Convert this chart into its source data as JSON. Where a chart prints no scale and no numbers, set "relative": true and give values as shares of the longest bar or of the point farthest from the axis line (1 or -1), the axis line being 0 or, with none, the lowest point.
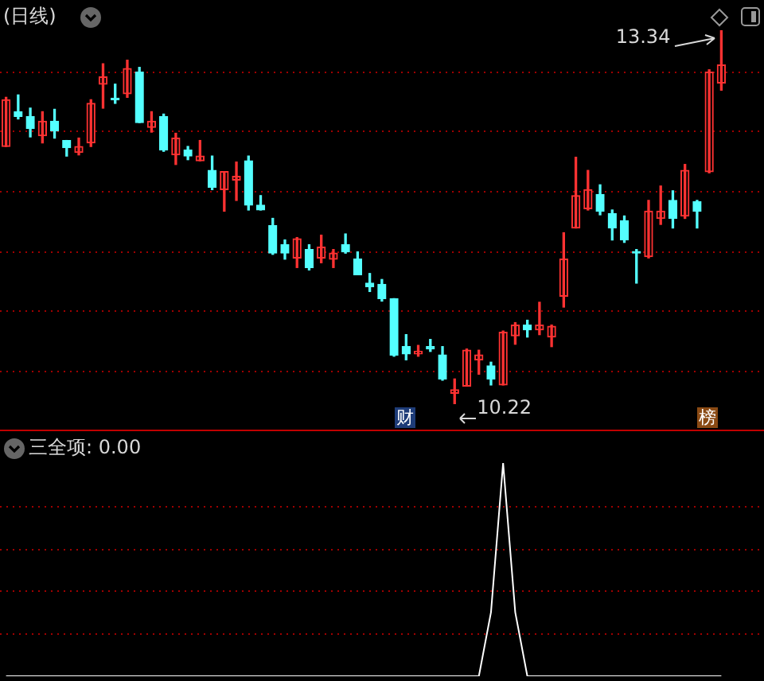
{
  "chart_data": [
    {
      "type": "candlestick",
      "title": "(日线)",
      "grid": true,
      "categories": [
        null,
        null,
        null,
        null,
        null,
        null,
        null,
        null,
        null,
        null,
        null,
        null,
        null,
        null,
        null,
        null,
        null,
        null,
        null,
        null,
        null,
        null,
        null,
        null,
        null,
        null,
        null,
        null,
        null,
        null,
        null,
        null,
        null,
        null,
        null,
        null,
        null,
        null,
        null,
        null,
        null,
        null,
        null,
        null,
        null,
        null,
        null,
        null,
        null,
        null,
        null,
        null,
        null,
        null,
        null,
        null,
        null,
        null,
        null,
        null
      ],
      "ohlc": [
        [
          12.37,
          12.78,
          12.37,
          12.76
        ],
        [
          12.66,
          12.8,
          12.6,
          12.62
        ],
        [
          12.62,
          12.69,
          12.45,
          12.52
        ],
        [
          12.46,
          12.66,
          12.4,
          12.58
        ],
        [
          12.58,
          12.68,
          12.44,
          12.5
        ],
        [
          12.42,
          12.42,
          12.29,
          12.36
        ],
        [
          12.32,
          12.44,
          12.3,
          12.37
        ],
        [
          12.4,
          12.76,
          12.37,
          12.73
        ],
        [
          12.89,
          13.06,
          12.69,
          12.95
        ],
        [
          12.77,
          12.89,
          12.73,
          12.76
        ],
        [
          12.81,
          13.09,
          12.78,
          13.02
        ],
        [
          12.99,
          13.03,
          12.57,
          12.57
        ],
        [
          12.53,
          12.66,
          12.49,
          12.58
        ],
        [
          12.62,
          12.64,
          12.33,
          12.34
        ],
        [
          12.3,
          12.48,
          12.22,
          12.44
        ],
        [
          12.34,
          12.37,
          12.26,
          12.29
        ],
        [
          12.25,
          12.42,
          12.25,
          12.29
        ],
        [
          12.17,
          12.29,
          12.01,
          12.03
        ],
        [
          12.01,
          12.16,
          11.83,
          12.16
        ],
        [
          12.09,
          12.24,
          11.92,
          12.12
        ],
        [
          12.25,
          12.29,
          11.84,
          11.88
        ],
        [
          11.88,
          11.96,
          11.84,
          11.84
        ],
        [
          11.71,
          11.77,
          11.47,
          11.48
        ],
        [
          11.55,
          11.59,
          11.43,
          11.48
        ],
        [
          11.44,
          11.61,
          11.36,
          11.6
        ],
        [
          11.51,
          11.55,
          11.34,
          11.36
        ],
        [
          11.44,
          11.63,
          11.4,
          11.53
        ],
        [
          11.43,
          11.51,
          11.36,
          11.48
        ],
        [
          11.55,
          11.64,
          11.48,
          11.49
        ],
        [
          11.43,
          11.49,
          11.3,
          11.3
        ],
        [
          11.23,
          11.31,
          11.16,
          11.2
        ],
        [
          11.22,
          11.26,
          11.08,
          11.1
        ],
        [
          11.1,
          11.1,
          10.62,
          10.63
        ],
        [
          10.7,
          10.8,
          10.59,
          10.64
        ],
        [
          10.64,
          10.71,
          10.62,
          10.66
        ],
        [
          10.7,
          10.76,
          10.66,
          10.68
        ],
        [
          10.63,
          10.7,
          10.42,
          10.43
        ],
        [
          10.31,
          10.43,
          10.22,
          10.34
        ],
        [
          10.37,
          10.68,
          10.37,
          10.67
        ],
        [
          10.59,
          10.67,
          10.47,
          10.63
        ],
        [
          10.54,
          10.57,
          10.38,
          10.43
        ],
        [
          10.38,
          10.83,
          10.38,
          10.82
        ],
        [
          10.79,
          10.9,
          10.72,
          10.88
        ],
        [
          10.88,
          10.92,
          10.78,
          10.84
        ],
        [
          10.84,
          11.07,
          10.8,
          10.88
        ],
        [
          10.78,
          10.88,
          10.7,
          10.87
        ],
        [
          11.12,
          11.65,
          11.03,
          11.43
        ],
        [
          11.69,
          12.28,
          11.69,
          11.96
        ],
        [
          11.85,
          12.17,
          11.84,
          12.01
        ],
        [
          11.97,
          12.05,
          11.8,
          11.83
        ],
        [
          11.81,
          11.84,
          11.59,
          11.69
        ],
        [
          11.75,
          11.79,
          11.57,
          11.59
        ],
        [
          11.48,
          11.51,
          11.23,
          11.48
        ],
        [
          11.45,
          11.92,
          11.44,
          11.83
        ],
        [
          11.77,
          12.04,
          11.72,
          11.83
        ],
        [
          11.92,
          12.0,
          11.69,
          11.77
        ],
        [
          11.79,
          12.22,
          11.77,
          12.17
        ],
        [
          11.91,
          11.92,
          11.69,
          11.83
        ],
        [
          12.16,
          13.01,
          12.15,
          12.99
        ],
        [
          12.9,
          13.34,
          12.84,
          13.05
        ]
      ],
      "colors": [
        "#ff3232",
        "#54ffff",
        "#54ffff",
        "#ff3232",
        "#54ffff",
        "#54ffff",
        "#ff3232",
        "#ff3232",
        "#ff3232",
        "#54ffff",
        "#ff3232",
        "#54ffff",
        "#ff3232",
        "#54ffff",
        "#ff3232",
        "#54ffff",
        "#ff3232",
        "#54ffff",
        "#ff3232",
        "#ff3232",
        "#54ffff",
        "#54ffff",
        "#54ffff",
        "#54ffff",
        "#ff3232",
        "#54ffff",
        "#ff3232",
        "#ff3232",
        "#54ffff",
        "#54ffff",
        "#54ffff",
        "#54ffff",
        "#54ffff",
        "#54ffff",
        "#ff3232",
        "#54ffff",
        "#54ffff",
        "#ff3232",
        "#ff3232",
        "#ff3232",
        "#54ffff",
        "#ff3232",
        "#ff3232",
        "#54ffff",
        "#ff3232",
        "#ff3232",
        "#ff3232",
        "#ff3232",
        "#ff3232",
        "#54ffff",
        "#54ffff",
        "#54ffff",
        "#54ffff",
        "#ff3232",
        "#ff3232",
        "#54ffff",
        "#ff3232",
        "#54ffff",
        "#ff3232",
        "#ff3232"
      ],
      "yticks": [
        {
          "value": 10.5,
          "label": null
        },
        {
          "value": 11,
          "label": null
        },
        {
          "value": 11.5,
          "label": null
        },
        {
          "value": 12,
          "label": null
        },
        {
          "value": 12.5,
          "label": null
        },
        {
          "value": 13,
          "label": null
        }
      ],
      "annotations": [
        "13.34",
        "10.22",
        "财",
        "榜"
      ]
    },
    {
      "type": "line",
      "relative": true,
      "ref_lines": [
        {
          "axis": "y",
          "value": 0.2,
          "color": "#a00000",
          "line_style": "dotted"
        },
        {
          "axis": "y",
          "value": 0.4,
          "color": "#a00000",
          "line_style": "dotted"
        },
        {
          "axis": "y",
          "value": 0.6,
          "color": "#a00000",
          "line_style": "dotted"
        },
        {
          "axis": "y",
          "value": 0.8,
          "color": "#a00000",
          "line_style": "dotted"
        }
      ],
      "categories": [
        null,
        null,
        null,
        null,
        null,
        null,
        null,
        null,
        null,
        null,
        null,
        null,
        null,
        null,
        null,
        null,
        null,
        null,
        null,
        null,
        null,
        null,
        null,
        null,
        null,
        null,
        null,
        null,
        null,
        null,
        null,
        null,
        null,
        null,
        null,
        null,
        null,
        null,
        null,
        null,
        null,
        null,
        null,
        null,
        null,
        null,
        null,
        null,
        null,
        null,
        null,
        null,
        null,
        null,
        null,
        null,
        null,
        null,
        null,
        null
      ],
      "series": [
        {
          "color": "#ffffff",
          "values": [
            0,
            0,
            0,
            0,
            0,
            0,
            0,
            0,
            0,
            0,
            0,
            0,
            0,
            0,
            0,
            0,
            0,
            0,
            0,
            0,
            0,
            0,
            0,
            0,
            0,
            0,
            0,
            0,
            0,
            0,
            0,
            0,
            0,
            0,
            0,
            0,
            0,
            0,
            0,
            0,
            0.3,
            1,
            0.3,
            0,
            0,
            0,
            0,
            0,
            0,
            0,
            0,
            0,
            0,
            0,
            0,
            0,
            0,
            0,
            0,
            0
          ]
        }
      ],
      "annotations": [
        "三全项: 0.00"
      ]
    }
  ]
}
